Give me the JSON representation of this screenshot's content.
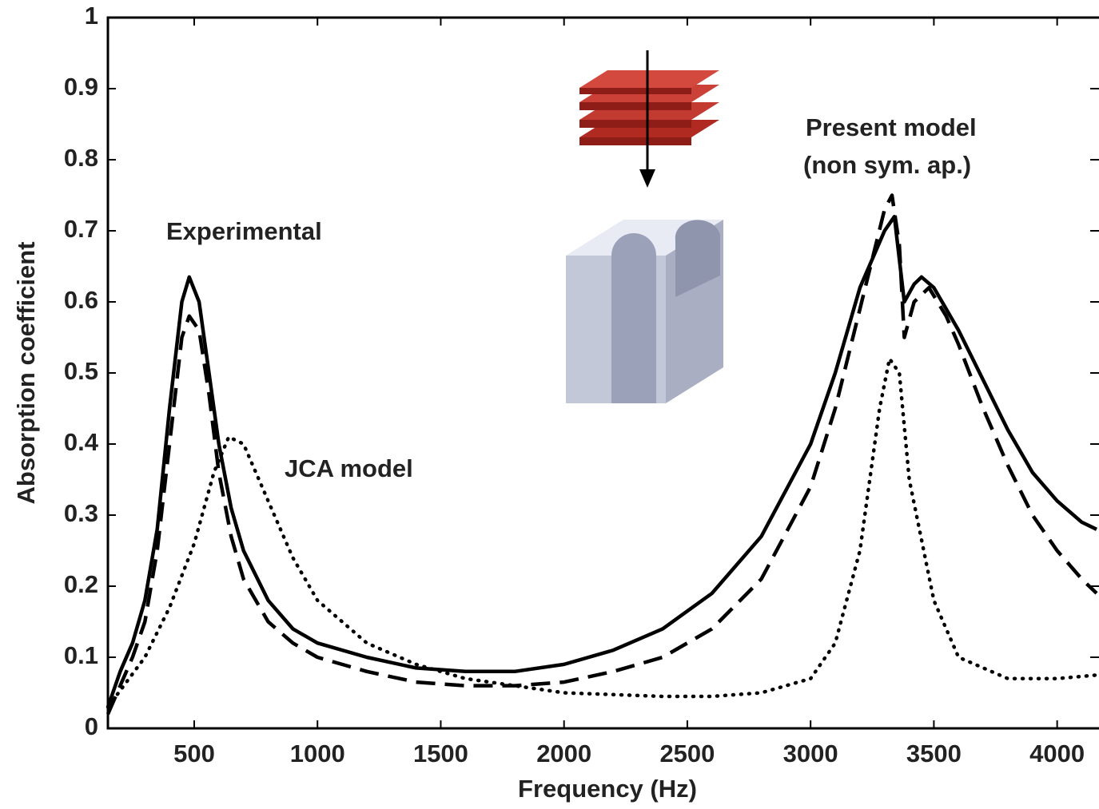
{
  "chart_data": {
    "type": "line",
    "xlabel": "Frequency (Hz)",
    "ylabel": "Absorption coefficient",
    "xlim": [
      150,
      4160
    ],
    "ylim": [
      0,
      1
    ],
    "xticks": [
      500,
      1000,
      1500,
      2000,
      2500,
      3000,
      3500,
      4000
    ],
    "yticks": [
      0,
      0.1,
      0.2,
      0.3,
      0.4,
      0.5,
      0.6,
      0.7,
      0.8,
      0.9,
      1
    ],
    "annotations": [
      "Experimental",
      "JCA model",
      "Present model",
      "(non sym. ap.)"
    ],
    "series": [
      {
        "color": "#000000",
        "dash": "solid",
        "x": [
          150,
          200,
          250,
          300,
          350,
          400,
          450,
          480,
          520,
          560,
          600,
          650,
          700,
          800,
          900,
          1000,
          1200,
          1400,
          1600,
          1800,
          2000,
          2200,
          2400,
          2600,
          2800,
          3000,
          3100,
          3200,
          3300,
          3340,
          3380,
          3420,
          3450,
          3500,
          3600,
          3700,
          3800,
          3900,
          4000,
          4100,
          4160
        ],
        "values": [
          0.03,
          0.08,
          0.12,
          0.18,
          0.28,
          0.45,
          0.6,
          0.635,
          0.6,
          0.5,
          0.4,
          0.31,
          0.25,
          0.18,
          0.14,
          0.12,
          0.1,
          0.085,
          0.08,
          0.08,
          0.09,
          0.11,
          0.14,
          0.19,
          0.27,
          0.4,
          0.5,
          0.62,
          0.7,
          0.72,
          0.6,
          0.625,
          0.635,
          0.62,
          0.56,
          0.49,
          0.42,
          0.36,
          0.32,
          0.29,
          0.28
        ]
      },
      {
        "color": "#000000",
        "dash": "dashed",
        "x": [
          150,
          200,
          250,
          300,
          350,
          400,
          450,
          480,
          520,
          560,
          600,
          650,
          700,
          800,
          900,
          1000,
          1200,
          1400,
          1600,
          1800,
          2000,
          2200,
          2400,
          2600,
          2800,
          3000,
          3100,
          3200,
          3300,
          3330,
          3360,
          3380,
          3420,
          3480,
          3550,
          3600,
          3700,
          3800,
          3900,
          4000,
          4100,
          4160
        ],
        "values": [
          0.02,
          0.06,
          0.1,
          0.15,
          0.25,
          0.4,
          0.55,
          0.58,
          0.56,
          0.47,
          0.36,
          0.27,
          0.21,
          0.15,
          0.12,
          0.1,
          0.08,
          0.065,
          0.06,
          0.06,
          0.065,
          0.08,
          0.1,
          0.14,
          0.21,
          0.34,
          0.45,
          0.59,
          0.73,
          0.75,
          0.68,
          0.55,
          0.6,
          0.62,
          0.58,
          0.54,
          0.45,
          0.37,
          0.3,
          0.25,
          0.21,
          0.19
        ]
      },
      {
        "color": "#000000",
        "dash": "dotted",
        "x": [
          150,
          300,
          400,
          500,
          580,
          640,
          700,
          800,
          900,
          1000,
          1200,
          1400,
          1600,
          1800,
          2000,
          2400,
          2600,
          2800,
          3000,
          3100,
          3200,
          3280,
          3320,
          3360,
          3400,
          3500,
          3600,
          3800,
          4000,
          4160
        ],
        "values": [
          0.03,
          0.1,
          0.17,
          0.26,
          0.36,
          0.41,
          0.4,
          0.32,
          0.24,
          0.18,
          0.12,
          0.09,
          0.07,
          0.06,
          0.05,
          0.045,
          0.045,
          0.05,
          0.07,
          0.12,
          0.25,
          0.45,
          0.52,
          0.5,
          0.35,
          0.18,
          0.1,
          0.07,
          0.07,
          0.075
        ]
      }
    ]
  }
}
